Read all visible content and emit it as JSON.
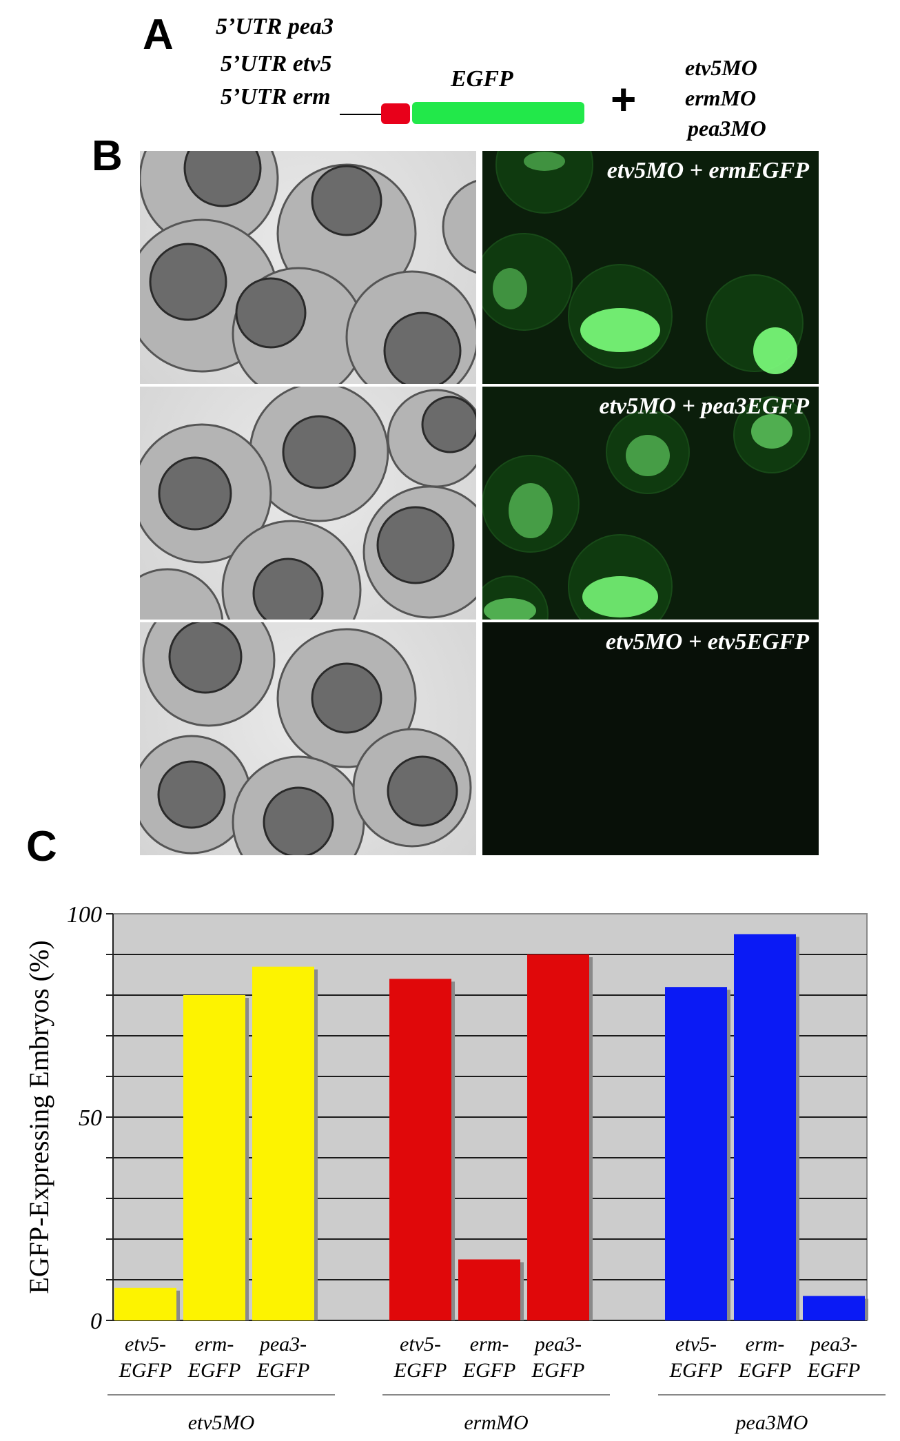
{
  "panels": {
    "a": {
      "letter": "A",
      "utr_labels": [
        "5’UTR pea3",
        "5’UTR etv5",
        "5’UTR erm"
      ],
      "egfp_label": "EGFP",
      "plus": "+",
      "morpholinos": [
        "etv5MO",
        "ermMO",
        "pea3MO"
      ],
      "colors": {
        "utr_block": "#e8001a",
        "egfp_block": "#22e84a"
      }
    },
    "b": {
      "letter": "B",
      "rows": [
        {
          "fluorescence_label": "etv5MO + ermEGFP"
        },
        {
          "fluorescence_label": "etv5MO + pea3EGFP"
        },
        {
          "fluorescence_label": "etv5MO + etv5EGFP"
        }
      ]
    },
    "c": {
      "letter": "C"
    }
  },
  "chart_data": {
    "type": "bar",
    "ylabel": "EGFP-Expressing Embryos (%)",
    "ylim": [
      0,
      100
    ],
    "yticks": [
      0,
      50,
      100
    ],
    "grid": true,
    "background": "#cccccc",
    "groups": [
      {
        "name": "etv5MO",
        "color": "#fdf300",
        "bars": [
          {
            "label": [
              "etv5-",
              "EGFP"
            ],
            "value": 8
          },
          {
            "label": [
              "erm-",
              "EGFP"
            ],
            "value": 80
          },
          {
            "label": [
              "pea3-",
              "EGFP"
            ],
            "value": 87
          }
        ]
      },
      {
        "name": "ermMO",
        "color": "#e0080a",
        "bars": [
          {
            "label": [
              "etv5-",
              "EGFP"
            ],
            "value": 84
          },
          {
            "label": [
              "erm-",
              "EGFP"
            ],
            "value": 15
          },
          {
            "label": [
              "pea3-",
              "EGFP"
            ],
            "value": 90
          }
        ]
      },
      {
        "name": "pea3MO",
        "color": "#0a1af5",
        "bars": [
          {
            "label": [
              "etv5-",
              "EGFP"
            ],
            "value": 82
          },
          {
            "label": [
              "erm-",
              "EGFP"
            ],
            "value": 95
          },
          {
            "label": [
              "pea3-",
              "EGFP"
            ],
            "value": 6
          }
        ]
      }
    ]
  }
}
